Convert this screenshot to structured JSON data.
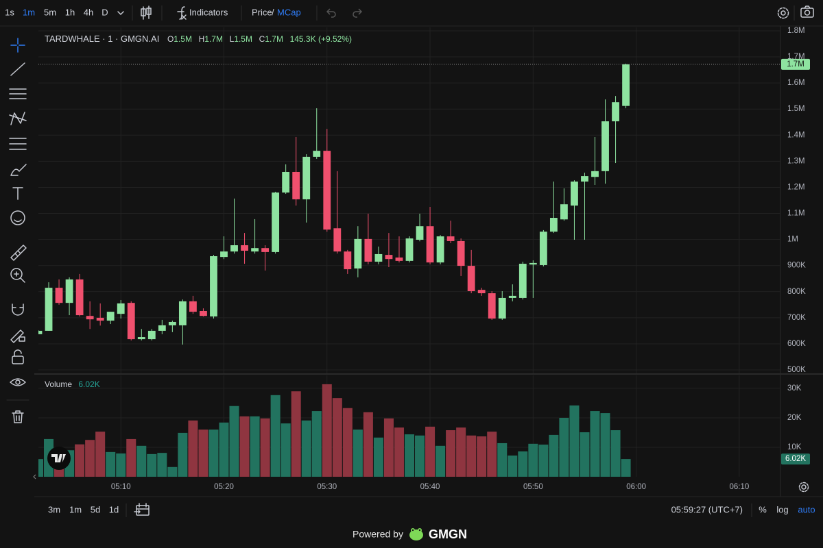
{
  "ui": {
    "intervals": [
      "1s",
      "1m",
      "5m",
      "1h",
      "4h",
      "D"
    ],
    "indicators": "Indicators",
    "price": "Price",
    "slash": "/",
    "mcap": "MCap",
    "ranges": [
      "3m",
      "1m",
      "5d",
      "1d"
    ],
    "clock": "05:59:27 (UTC+7)",
    "percent": "%",
    "log": "log",
    "auto": "auto",
    "powered_by": "Powered by",
    "brand": "GMGN"
  },
  "chart_data": {
    "type": "candlestick",
    "title": "TARDWHALE · 1 · GMGN.AI",
    "ohlc_legend": [
      {
        "prefix": "O",
        "label": "1.5M"
      },
      {
        "prefix": "H",
        "label": "1.7M"
      },
      {
        "prefix": "L",
        "label": "1.5M"
      },
      {
        "prefix": "C",
        "label": "1.7M"
      }
    ],
    "change_label": "145.3K (+9.52%)",
    "up_color": "#8ee3a0",
    "down_color": "#f0506e",
    "grid": true,
    "xlim": [
      "05:02",
      "06:14"
    ],
    "xticks": [
      "05:10",
      "05:20",
      "05:30",
      "05:40",
      "05:50",
      "06:00",
      "06:10"
    ],
    "ylim": [
      487000,
      1813000
    ],
    "yticks": [
      {
        "value": 500000,
        "label": "500K"
      },
      {
        "value": 600000,
        "label": "600K"
      },
      {
        "value": 700000,
        "label": "700K"
      },
      {
        "value": 800000,
        "label": "800K"
      },
      {
        "value": 900000,
        "label": "900K"
      },
      {
        "value": 1000000,
        "label": "1M"
      },
      {
        "value": 1100000,
        "label": "1.1M"
      },
      {
        "value": 1200000,
        "label": "1.2M"
      },
      {
        "value": 1300000,
        "label": "1.3M"
      },
      {
        "value": 1400000,
        "label": "1.4M"
      },
      {
        "value": 1500000,
        "label": "1.5M"
      },
      {
        "value": 1600000,
        "label": "1.6M"
      },
      {
        "value": 1700000,
        "label": "1.7M"
      },
      {
        "value": 1800000,
        "label": "1.8M"
      }
    ],
    "candles": {
      "x": [
        "05:02",
        "05:03",
        "05:04",
        "05:05",
        "05:06",
        "05:07",
        "05:08",
        "05:09",
        "05:10",
        "05:11",
        "05:12",
        "05:13",
        "05:14",
        "05:15",
        "05:16",
        "05:17",
        "05:18",
        "05:19",
        "05:20",
        "05:21",
        "05:22",
        "05:23",
        "05:24",
        "05:25",
        "05:26",
        "05:27",
        "05:28",
        "05:29",
        "05:30",
        "05:31",
        "05:32",
        "05:33",
        "05:34",
        "05:35",
        "05:36",
        "05:37",
        "05:38",
        "05:39",
        "05:40",
        "05:41",
        "05:42",
        "05:43",
        "05:44",
        "05:45",
        "05:46",
        "05:47",
        "05:48",
        "05:49",
        "05:50",
        "05:51",
        "05:52",
        "05:53",
        "05:54",
        "05:55",
        "05:56",
        "05:57",
        "05:58",
        "05:59"
      ],
      "open": [
        637000,
        650000,
        815000,
        757000,
        847000,
        707000,
        700000,
        689000,
        715000,
        757000,
        618000,
        618000,
        650000,
        671000,
        671000,
        763000,
        726000,
        705000,
        933000,
        954000,
        978000,
        954000,
        967000,
        952000,
        1180000,
        1259000,
        1154000,
        1317000,
        1340000,
        1043000,
        954000,
        889000,
        1002000,
        915000,
        941000,
        931000,
        918000,
        999000,
        1051000,
        912000,
        1012000,
        994000,
        899000,
        807000,
        794000,
        697000,
        776000,
        776000,
        904000,
        902000,
        1030000,
        1077000,
        1130000,
        1222000,
        1240000,
        1262000,
        1453000,
        1512000
      ],
      "high": [
        652000,
        836000,
        847000,
        855000,
        868000,
        763000,
        755000,
        723000,
        768000,
        763000,
        657000,
        657000,
        692000,
        689000,
        770000,
        784000,
        736000,
        941000,
        1012000,
        1157000,
        1025000,
        1078000,
        978000,
        1183000,
        1288000,
        1393000,
        1327000,
        1503000,
        1424000,
        1262000,
        960000,
        1051000,
        1099000,
        973000,
        1025000,
        1012000,
        1012000,
        1099000,
        1125000,
        1017000,
        1072000,
        1004000,
        960000,
        815000,
        802000,
        802000,
        828000,
        915000,
        920000,
        1036000,
        1222000,
        1196000,
        1227000,
        1256000,
        1393000,
        1537000,
        1550000,
        1674000
      ],
      "low": [
        637000,
        650000,
        750000,
        710000,
        705000,
        657000,
        670000,
        676000,
        697000,
        613000,
        613000,
        613000,
        637000,
        645000,
        597000,
        715000,
        705000,
        697000,
        925000,
        946000,
        907000,
        946000,
        881000,
        946000,
        1175000,
        1130000,
        1065000,
        1309000,
        1030000,
        946000,
        868000,
        855000,
        905000,
        905000,
        894000,
        912000,
        912000,
        993000,
        905000,
        905000,
        986000,
        860000,
        794000,
        784000,
        692000,
        692000,
        763000,
        770000,
        776000,
        897000,
        1025000,
        1072000,
        999000,
        999000,
        1209000,
        1214000,
        1293000,
        1503000
      ],
      "close": [
        650000,
        815000,
        757000,
        847000,
        710000,
        694000,
        689000,
        723000,
        755000,
        618000,
        626000,
        650000,
        671000,
        684000,
        763000,
        723000,
        707000,
        936000,
        954000,
        978000,
        957000,
        967000,
        952000,
        1180000,
        1259000,
        1154000,
        1317000,
        1340000,
        1038000,
        954000,
        886000,
        1002000,
        915000,
        944000,
        925000,
        918000,
        1004000,
        1051000,
        912000,
        1012000,
        994000,
        899000,
        802000,
        794000,
        697000,
        776000,
        784000,
        907000,
        910000,
        1030000,
        1083000,
        1135000,
        1222000,
        1243000,
        1262000,
        1453000,
        1526300,
        1671600
      ]
    },
    "volume": {
      "name": "Volume",
      "label": "6.02K",
      "up_color": "#22735f",
      "down_color": "#8f3540",
      "ylim": [
        0,
        34400
      ],
      "yticks": [
        {
          "value": 10000,
          "label": "10K"
        },
        {
          "value": 20000,
          "label": "20K"
        },
        {
          "value": 30000,
          "label": "30K"
        }
      ],
      "values": [
        6000,
        12800,
        8800,
        9000,
        11000,
        12500,
        15300,
        8400,
        7900,
        12800,
        10500,
        7700,
        8100,
        3300,
        14900,
        19100,
        16000,
        16000,
        18400,
        24000,
        20500,
        20500,
        19800,
        27700,
        18100,
        29000,
        19100,
        22300,
        31400,
        26700,
        23300,
        16000,
        21900,
        13300,
        19800,
        16700,
        14400,
        14000,
        17000,
        10500,
        15800,
        16700,
        14000,
        13700,
        15300,
        11400,
        7200,
        8600,
        11200,
        10900,
        14200,
        20000,
        24200,
        15100,
        22300,
        21600,
        15800,
        6020
      ]
    }
  }
}
